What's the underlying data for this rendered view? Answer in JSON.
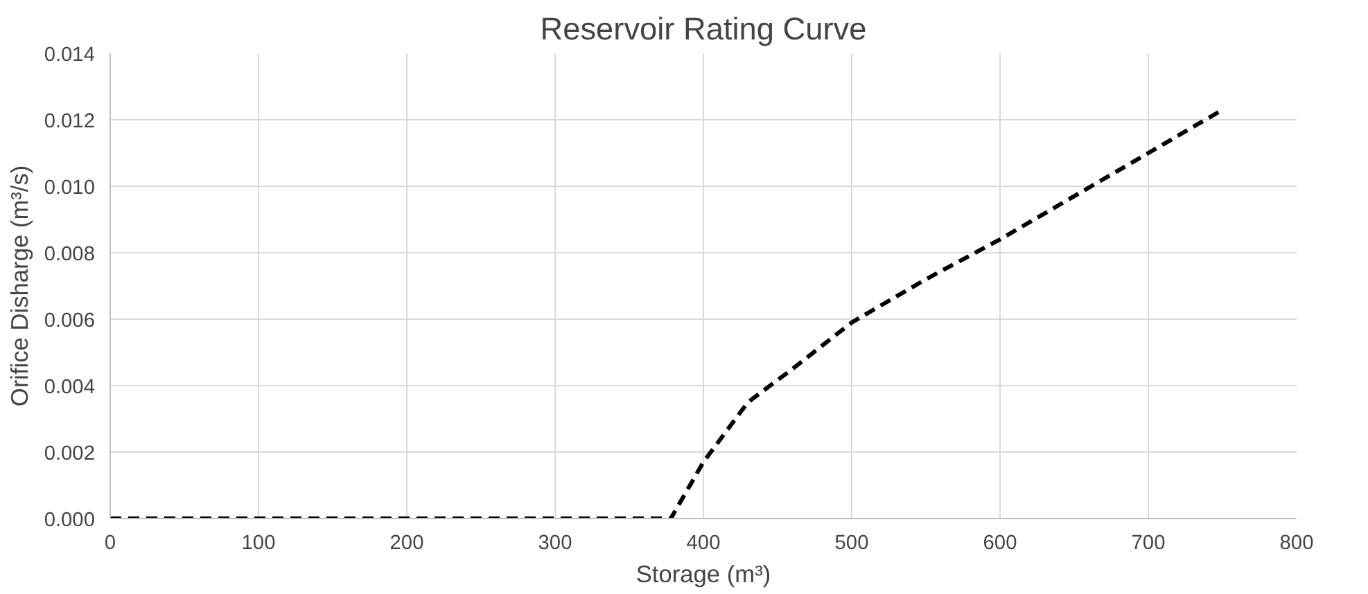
{
  "chart_data": {
    "type": "line",
    "title": "Reservoir Rating Curve",
    "xlabel": "Storage (m³)",
    "ylabel": "Orifice Disharge (m³/s)",
    "x": [
      0,
      100,
      200,
      300,
      378,
      400,
      430,
      460,
      500,
      550,
      600,
      650,
      700,
      750
    ],
    "series": [
      {
        "color": "#000000",
        "values": [
          0,
          0,
          0,
          0,
          0,
          0.0017,
          0.0035,
          0.0045,
          0.0059,
          0.0072,
          0.0084,
          0.0097,
          0.011,
          0.0123
        ]
      }
    ],
    "xlim": [
      0,
      800
    ],
    "xticks": [
      0,
      100,
      200,
      300,
      400,
      500,
      600,
      700,
      800
    ],
    "ylim": [
      0,
      0.014
    ],
    "yticks": [
      {
        "value": 0,
        "label": "0.000"
      },
      {
        "value": 0.002,
        "label": "0.002"
      },
      {
        "value": 0.004,
        "label": "0.004"
      },
      {
        "value": 0.006,
        "label": "0.006"
      },
      {
        "value": 0.008,
        "label": "0.008"
      },
      {
        "value": 0.01,
        "label": "0.010"
      },
      {
        "value": 0.012,
        "label": "0.012"
      },
      {
        "value": 0.014,
        "label": "0.014"
      }
    ],
    "grid": true,
    "line_style": "dashed"
  }
}
